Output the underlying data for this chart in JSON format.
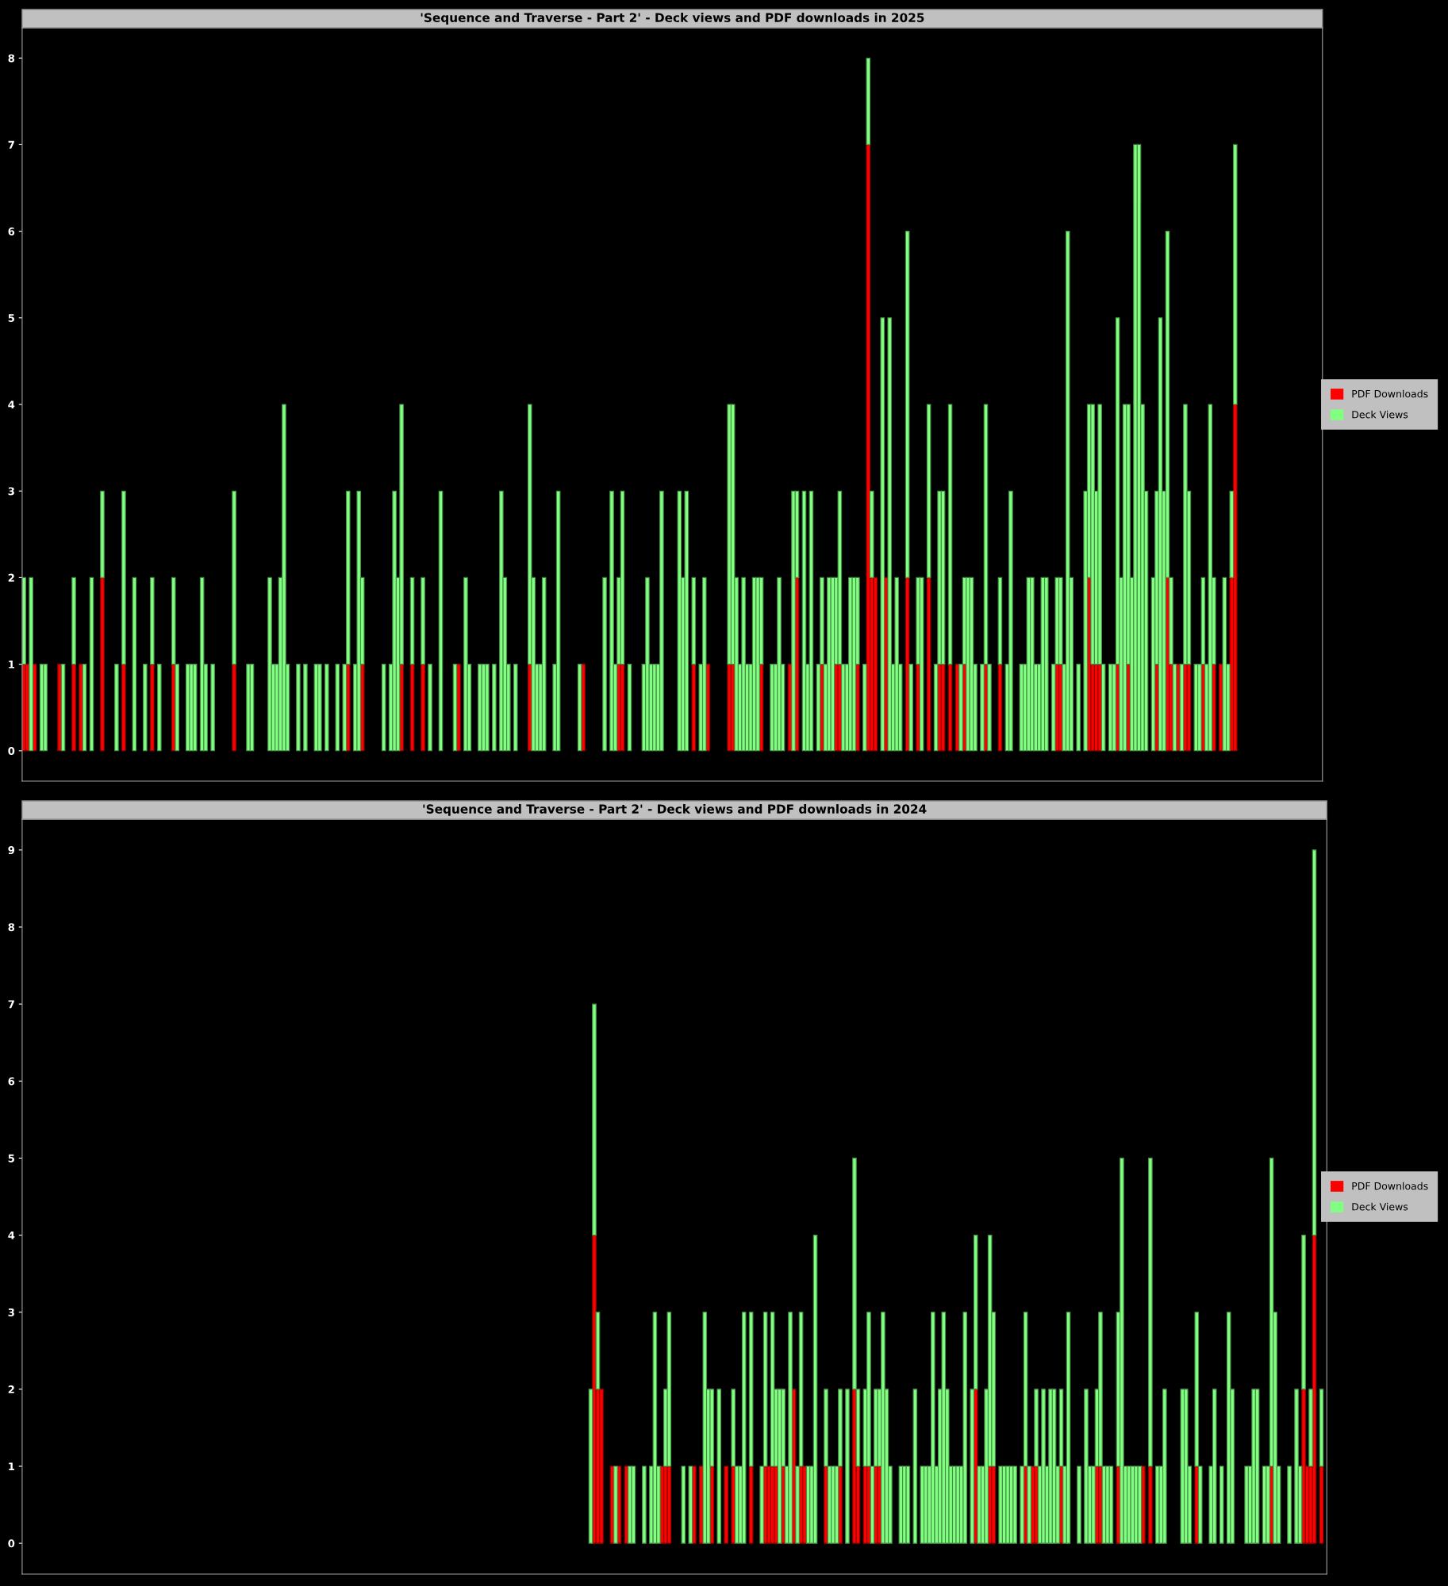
{
  "chart_data": [
    {
      "type": "bar",
      "title": "'Sequence and Traverse - Part 2' - Deck views and PDF downloads in 2025",
      "stacked": true,
      "legend": "right",
      "tick_labels": "y",
      "ylim": [
        -0.35,
        8.35
      ],
      "yticks": [
        0,
        1,
        2,
        3,
        4,
        5,
        6,
        7,
        8
      ],
      "categories": [
        null,
        null,
        null,
        null,
        null,
        null,
        null,
        null,
        null,
        null,
        null,
        null,
        null,
        null,
        null,
        null,
        null,
        null,
        null,
        null,
        null,
        null,
        null,
        null,
        null,
        null,
        null,
        null,
        null,
        null,
        null,
        null,
        null,
        null,
        null,
        null,
        null,
        null,
        null,
        null,
        null,
        null,
        null,
        null,
        null,
        null,
        null,
        null,
        null,
        null,
        null,
        null,
        null,
        null,
        null,
        null,
        null,
        null,
        null,
        null,
        null,
        null,
        null,
        null,
        null,
        null,
        null,
        null,
        null,
        null,
        null,
        null,
        null,
        null,
        null,
        null,
        null,
        null,
        null,
        null,
        null,
        null,
        null,
        null,
        null,
        null,
        null,
        null,
        null,
        null,
        null,
        null,
        null,
        null,
        null,
        null,
        null,
        null,
        null,
        null,
        null,
        null,
        null,
        null,
        null,
        null,
        null,
        null,
        null,
        null,
        null,
        null,
        null,
        null,
        null,
        null,
        null,
        null,
        null,
        null,
        null,
        null,
        null,
        null,
        null,
        null,
        null,
        null,
        null,
        null,
        null,
        null,
        null,
        null,
        null,
        null,
        null,
        null,
        null,
        null,
        null,
        null,
        null,
        null,
        null,
        null,
        null,
        null,
        null,
        null,
        null,
        null,
        null,
        null,
        null,
        null,
        null,
        null,
        null,
        null,
        null,
        null,
        null,
        null,
        null,
        null,
        null,
        null,
        null,
        null,
        null,
        null,
        null,
        null,
        null,
        null,
        null,
        null,
        null,
        null,
        null,
        null,
        null,
        null,
        null,
        null,
        null,
        null,
        null,
        null,
        null,
        null,
        null,
        null,
        null,
        null,
        null,
        null,
        null,
        null,
        null,
        null,
        null,
        null,
        null,
        null,
        null,
        null,
        null,
        null,
        null,
        null,
        null,
        null,
        null,
        null,
        null,
        null,
        null,
        null,
        null,
        null,
        null,
        null,
        null,
        null,
        null,
        null,
        null,
        null,
        null,
        null,
        null,
        null,
        null,
        null,
        null,
        null,
        null,
        null,
        null,
        null,
        null,
        null,
        null,
        null,
        null,
        null,
        null,
        null,
        null,
        null,
        null,
        null,
        null,
        null,
        null,
        null,
        null,
        null,
        null,
        null,
        null,
        null,
        null,
        null,
        null,
        null,
        null,
        null,
        null,
        null,
        null,
        null,
        null,
        null,
        null,
        null,
        null,
        null,
        null,
        null,
        null,
        null,
        null,
        null,
        null,
        null,
        null,
        null,
        null,
        null,
        null,
        null,
        null,
        null,
        null,
        null,
        null,
        null,
        null,
        null,
        null,
        null,
        null,
        null,
        null,
        null,
        null,
        null,
        null,
        null,
        null,
        null,
        null,
        null,
        null,
        null,
        null,
        null,
        null,
        null,
        null,
        null,
        null,
        null,
        null,
        null,
        null,
        null,
        null,
        null,
        null,
        null,
        null,
        null,
        null,
        null,
        null,
        null,
        null,
        null,
        null,
        null,
        null,
        null,
        null,
        null,
        null,
        null,
        null,
        null,
        null,
        null,
        null,
        null,
        null,
        null,
        null,
        null,
        null,
        null,
        null,
        null,
        null
      ],
      "series": [
        {
          "name": "PDF Downloads",
          "color": "#ff0000",
          "values": [
            1,
            1,
            0,
            1,
            0,
            0,
            0,
            0,
            0,
            0,
            1,
            0,
            0,
            0,
            1,
            0,
            1,
            0,
            0,
            0,
            0,
            0,
            2,
            0,
            0,
            0,
            0,
            0,
            1,
            0,
            0,
            0,
            0,
            0,
            0,
            0,
            1,
            0,
            0,
            0,
            0,
            0,
            1,
            0,
            0,
            0,
            0,
            0,
            0,
            0,
            0,
            0,
            0,
            0,
            0,
            0,
            0,
            0,
            0,
            1,
            0,
            0,
            0,
            0,
            0,
            0,
            0,
            0,
            0,
            0,
            0,
            0,
            0,
            0,
            0,
            0,
            0,
            0,
            0,
            0,
            0,
            0,
            0,
            0,
            0,
            0,
            0,
            0,
            0,
            0,
            0,
            1,
            0,
            0,
            0,
            1,
            0,
            0,
            0,
            0,
            0,
            0,
            0,
            0,
            0,
            0,
            1,
            0,
            0,
            1,
            0,
            0,
            1,
            0,
            0,
            0,
            0,
            0,
            0,
            0,
            0,
            0,
            1,
            0,
            0,
            0,
            0,
            0,
            0,
            0,
            0,
            0,
            0,
            0,
            0,
            0,
            0,
            0,
            0,
            0,
            0,
            0,
            1,
            0,
            0,
            0,
            0,
            0,
            0,
            0,
            0,
            0,
            0,
            0,
            0,
            0,
            0,
            1,
            0,
            0,
            0,
            0,
            0,
            0,
            0,
            0,
            0,
            1,
            1,
            0,
            0,
            0,
            0,
            0,
            0,
            0,
            0,
            0,
            0,
            0,
            0,
            0,
            0,
            0,
            0,
            0,
            0,
            0,
            1,
            0,
            0,
            0,
            1,
            0,
            0,
            0,
            0,
            0,
            1,
            1,
            0,
            0,
            0,
            0,
            0,
            0,
            0,
            1,
            0,
            0,
            0,
            0,
            0,
            0,
            0,
            1,
            0,
            2,
            0,
            0,
            0,
            0,
            0,
            0,
            1,
            0,
            0,
            0,
            1,
            1,
            0,
            0,
            0,
            0,
            1,
            0,
            0,
            7,
            2,
            2,
            0,
            0,
            2,
            0,
            0,
            0,
            0,
            0,
            2,
            0,
            0,
            1,
            0,
            0,
            2,
            0,
            0,
            1,
            1,
            0,
            1,
            0,
            1,
            0,
            1,
            0,
            0,
            0,
            0,
            0,
            1,
            0,
            0,
            0,
            1,
            0,
            0,
            0,
            0,
            0,
            0,
            0,
            0,
            0,
            0,
            0,
            0,
            0,
            0,
            0,
            1,
            1,
            0,
            0,
            0,
            0,
            0,
            0,
            0,
            2,
            1,
            1,
            1,
            0,
            0,
            0,
            0,
            1,
            0,
            0,
            1,
            0,
            0,
            0,
            0,
            0,
            0,
            0,
            1,
            0,
            0,
            2,
            1,
            0,
            1,
            0,
            1,
            1,
            0,
            0,
            0,
            1,
            0,
            0,
            1,
            0,
            1,
            0,
            0,
            2,
            4,
            0,
            0,
            0,
            0,
            0,
            0,
            0,
            0,
            0,
            0,
            0,
            0,
            0,
            0,
            0,
            0,
            0,
            0,
            0,
            0,
            0,
            0,
            0,
            0
          ]
        },
        {
          "name": "Deck Views",
          "color": "#80ff80",
          "values": [
            1,
            0,
            2,
            0,
            0,
            1,
            1,
            0,
            0,
            0,
            0,
            1,
            0,
            0,
            1,
            0,
            0,
            1,
            0,
            2,
            0,
            0,
            1,
            0,
            0,
            0,
            1,
            0,
            2,
            0,
            0,
            2,
            0,
            0,
            1,
            0,
            1,
            0,
            1,
            0,
            0,
            0,
            1,
            1,
            0,
            0,
            1,
            1,
            1,
            0,
            2,
            1,
            0,
            1,
            0,
            0,
            0,
            0,
            0,
            2,
            0,
            0,
            0,
            1,
            1,
            0,
            0,
            0,
            0,
            2,
            1,
            1,
            2,
            4,
            1,
            0,
            0,
            1,
            0,
            1,
            0,
            0,
            1,
            1,
            0,
            1,
            0,
            0,
            1,
            0,
            1,
            2,
            0,
            1,
            3,
            1,
            0,
            0,
            0,
            0,
            0,
            1,
            0,
            1,
            3,
            2,
            3,
            0,
            0,
            1,
            0,
            0,
            1,
            0,
            1,
            0,
            0,
            3,
            0,
            0,
            0,
            1,
            0,
            0,
            2,
            1,
            0,
            0,
            1,
            1,
            1,
            0,
            1,
            0,
            3,
            2,
            1,
            0,
            1,
            0,
            0,
            0,
            3,
            2,
            1,
            1,
            2,
            0,
            0,
            1,
            3,
            0,
            0,
            0,
            0,
            0,
            1,
            0,
            0,
            0,
            0,
            0,
            0,
            2,
            0,
            3,
            1,
            1,
            2,
            0,
            1,
            0,
            0,
            0,
            1,
            2,
            1,
            1,
            1,
            3,
            0,
            0,
            0,
            0,
            3,
            2,
            3,
            0,
            1,
            0,
            1,
            2,
            0,
            0,
            0,
            0,
            0,
            0,
            3,
            3,
            2,
            1,
            2,
            1,
            1,
            2,
            2,
            1,
            0,
            0,
            1,
            1,
            2,
            1,
            0,
            0,
            3,
            1,
            0,
            3,
            1,
            3,
            0,
            1,
            1,
            1,
            2,
            2,
            1,
            2,
            1,
            1,
            2,
            2,
            1,
            0,
            1,
            1,
            1,
            0,
            0,
            5,
            0,
            5,
            1,
            2,
            1,
            0,
            4,
            1,
            0,
            1,
            2,
            0,
            2,
            0,
            1,
            2,
            2,
            0,
            3,
            0,
            0,
            1,
            1,
            2,
            2,
            1,
            0,
            1,
            3,
            1,
            0,
            0,
            1,
            0,
            1,
            3,
            0,
            0,
            1,
            1,
            2,
            2,
            1,
            1,
            2,
            2,
            0,
            1,
            1,
            1,
            1,
            6,
            2,
            0,
            1,
            0,
            3,
            2,
            3,
            2,
            3,
            1,
            0,
            1,
            1,
            4,
            2,
            4,
            3,
            2,
            7,
            7,
            4,
            3,
            0,
            2,
            2,
            5,
            3,
            4,
            1,
            1,
            0,
            1,
            3,
            2,
            0,
            1,
            1,
            1,
            1,
            4,
            1,
            0,
            0,
            2,
            1,
            1,
            3,
            0,
            0,
            0,
            0,
            0,
            0,
            0,
            0,
            0,
            0,
            0,
            0,
            0,
            0,
            0,
            0,
            0,
            0,
            0,
            0,
            0,
            0,
            0,
            0
          ]
        }
      ]
    },
    {
      "type": "bar",
      "title": "'Sequence and Traverse - Part 2' - Deck views and PDF downloads in 2024",
      "stacked": true,
      "legend": "right",
      "tick_labels": "y",
      "ylim": [
        -0.4,
        9.4
      ],
      "yticks": [
        0,
        1,
        2,
        3,
        4,
        5,
        6,
        7,
        8,
        9
      ],
      "categories": [
        null,
        null,
        null,
        null,
        null,
        null,
        null,
        null,
        null,
        null,
        null,
        null,
        null,
        null,
        null,
        null,
        null,
        null,
        null,
        null,
        null,
        null,
        null,
        null,
        null,
        null,
        null,
        null,
        null,
        null,
        null,
        null,
        null,
        null,
        null,
        null,
        null,
        null,
        null,
        null,
        null,
        null,
        null,
        null,
        null,
        null,
        null,
        null,
        null,
        null,
        null,
        null,
        null,
        null,
        null,
        null,
        null,
        null,
        null,
        null,
        null,
        null,
        null,
        null,
        null,
        null,
        null,
        null,
        null,
        null,
        null,
        null,
        null,
        null,
        null,
        null,
        null,
        null,
        null,
        null,
        null,
        null,
        null,
        null,
        null,
        null,
        null,
        null,
        null,
        null,
        null,
        null,
        null,
        null,
        null,
        null,
        null,
        null,
        null,
        null,
        null,
        null,
        null,
        null,
        null,
        null,
        null,
        null,
        null,
        null,
        null,
        null,
        null,
        null,
        null,
        null,
        null,
        null,
        null,
        null,
        null,
        null,
        null,
        null,
        null,
        null,
        null,
        null,
        null,
        null,
        null,
        null,
        null,
        null,
        null,
        null,
        null,
        null,
        null,
        null,
        null,
        null,
        null,
        null,
        null,
        null,
        null,
        null,
        null,
        null,
        null,
        null,
        null,
        null,
        null,
        null,
        null,
        null,
        null,
        null,
        null,
        null,
        null,
        null,
        null,
        null,
        null,
        null,
        null,
        null,
        null,
        null,
        null,
        null,
        null,
        null,
        null,
        null,
        null,
        null,
        null,
        null,
        null,
        null,
        null,
        null,
        null,
        null,
        null,
        null,
        null,
        null,
        null,
        null,
        null,
        null,
        null,
        null,
        null,
        null,
        null,
        null,
        null,
        null,
        null,
        null,
        null,
        null,
        null,
        null,
        null,
        null,
        null,
        null,
        null,
        null,
        null,
        null,
        null,
        null,
        null,
        null,
        null,
        null,
        null,
        null,
        null,
        null,
        null,
        null,
        null,
        null,
        null,
        null,
        null,
        null,
        null,
        null,
        null,
        null,
        null,
        null,
        null,
        null,
        null,
        null,
        null,
        null,
        null,
        null,
        null,
        null,
        null,
        null,
        null,
        null,
        null,
        null,
        null,
        null,
        null,
        null,
        null,
        null,
        null,
        null,
        null,
        null,
        null,
        null,
        null,
        null,
        null,
        null,
        null,
        null,
        null,
        null,
        null,
        null,
        null,
        null,
        null,
        null,
        null,
        null,
        null,
        null,
        null,
        null,
        null,
        null,
        null,
        null,
        null,
        null,
        null,
        null,
        null,
        null,
        null,
        null,
        null,
        null,
        null,
        null,
        null,
        null,
        null,
        null,
        null,
        null,
        null,
        null,
        null,
        null,
        null,
        null,
        null,
        null,
        null,
        null,
        null,
        null,
        null,
        null,
        null,
        null,
        null,
        null,
        null,
        null,
        null,
        null,
        null,
        null,
        null,
        null,
        null,
        null,
        null,
        null,
        null,
        null,
        null,
        null,
        null,
        null,
        null,
        null,
        null,
        null,
        null,
        null,
        null,
        null,
        null,
        null,
        null,
        null,
        null,
        null,
        null,
        null,
        null,
        null
      ],
      "series": [
        {
          "name": "PDF Downloads",
          "color": "#ff0000",
          "values": [
            0,
            0,
            0,
            0,
            0,
            0,
            0,
            0,
            0,
            0,
            0,
            0,
            0,
            0,
            0,
            0,
            0,
            0,
            0,
            0,
            0,
            0,
            0,
            0,
            0,
            0,
            0,
            0,
            0,
            0,
            0,
            0,
            0,
            0,
            0,
            0,
            0,
            0,
            0,
            0,
            0,
            0,
            0,
            0,
            0,
            0,
            0,
            0,
            0,
            0,
            0,
            0,
            0,
            0,
            0,
            0,
            0,
            0,
            0,
            0,
            0,
            0,
            0,
            0,
            0,
            0,
            0,
            0,
            0,
            0,
            0,
            0,
            0,
            0,
            0,
            0,
            0,
            0,
            0,
            0,
            0,
            0,
            0,
            0,
            0,
            0,
            0,
            0,
            0,
            0,
            0,
            0,
            0,
            0,
            0,
            0,
            0,
            0,
            0,
            0,
            0,
            0,
            0,
            0,
            0,
            0,
            0,
            0,
            0,
            0,
            0,
            0,
            0,
            0,
            0,
            0,
            0,
            0,
            0,
            0,
            0,
            0,
            0,
            0,
            0,
            0,
            0,
            0,
            0,
            0,
            0,
            0,
            0,
            0,
            0,
            0,
            0,
            0,
            0,
            0,
            0,
            0,
            0,
            0,
            0,
            0,
            0,
            0,
            0,
            0,
            0,
            0,
            0,
            0,
            0,
            0,
            0,
            0,
            0,
            0,
            4,
            2,
            2,
            0,
            0,
            1,
            0,
            1,
            0,
            1,
            0,
            0,
            0,
            0,
            0,
            0,
            0,
            0,
            0,
            1,
            1,
            1,
            0,
            0,
            0,
            0,
            0,
            0,
            1,
            0,
            1,
            0,
            0,
            1,
            0,
            0,
            0,
            1,
            0,
            1,
            0,
            0,
            0,
            0,
            1,
            0,
            0,
            0,
            1,
            1,
            1,
            1,
            0,
            1,
            0,
            0,
            2,
            0,
            1,
            1,
            0,
            0,
            0,
            0,
            0,
            1,
            0,
            0,
            0,
            1,
            0,
            0,
            0,
            2,
            1,
            0,
            1,
            1,
            0,
            1,
            1,
            0,
            0,
            0,
            0,
            0,
            0,
            0,
            0,
            0,
            0,
            0,
            0,
            0,
            0,
            0,
            0,
            0,
            0,
            0,
            0,
            0,
            0,
            0,
            0,
            0,
            0,
            2,
            0,
            0,
            0,
            1,
            1,
            0,
            0,
            0,
            0,
            0,
            0,
            0,
            0,
            1,
            0,
            1,
            1,
            0,
            0,
            0,
            0,
            0,
            0,
            1,
            0,
            0,
            0,
            0,
            0,
            0,
            0,
            0,
            0,
            1,
            1,
            0,
            0,
            0,
            0,
            1,
            0,
            0,
            0,
            0,
            0,
            0,
            1,
            0,
            1,
            0,
            0,
            0,
            0,
            0,
            0,
            0,
            0,
            0,
            0,
            0,
            0,
            1,
            0,
            0,
            0,
            0,
            0,
            0,
            0,
            0,
            0,
            0,
            0,
            0,
            0,
            0,
            0,
            0,
            0,
            0,
            0,
            0,
            1,
            0,
            0,
            0,
            0,
            0,
            0,
            0,
            0,
            2,
            1,
            1,
            4,
            0,
            1,
            0
          ]
        },
        {
          "name": "Deck Views",
          "color": "#80ff80",
          "values": [
            0,
            0,
            0,
            0,
            0,
            0,
            0,
            0,
            0,
            0,
            0,
            0,
            0,
            0,
            0,
            0,
            0,
            0,
            0,
            0,
            0,
            0,
            0,
            0,
            0,
            0,
            0,
            0,
            0,
            0,
            0,
            0,
            0,
            0,
            0,
            0,
            0,
            0,
            0,
            0,
            0,
            0,
            0,
            0,
            0,
            0,
            0,
            0,
            0,
            0,
            0,
            0,
            0,
            0,
            0,
            0,
            0,
            0,
            0,
            0,
            0,
            0,
            0,
            0,
            0,
            0,
            0,
            0,
            0,
            0,
            0,
            0,
            0,
            0,
            0,
            0,
            0,
            0,
            0,
            0,
            0,
            0,
            0,
            0,
            0,
            0,
            0,
            0,
            0,
            0,
            0,
            0,
            0,
            0,
            0,
            0,
            0,
            0,
            0,
            0,
            0,
            0,
            0,
            0,
            0,
            0,
            0,
            0,
            0,
            0,
            0,
            0,
            0,
            0,
            0,
            0,
            0,
            0,
            0,
            0,
            0,
            0,
            0,
            0,
            0,
            0,
            0,
            0,
            0,
            0,
            0,
            0,
            0,
            0,
            0,
            0,
            0,
            0,
            0,
            0,
            0,
            0,
            0,
            0,
            0,
            0,
            0,
            0,
            0,
            0,
            0,
            0,
            0,
            0,
            0,
            0,
            0,
            0,
            0,
            2,
            3,
            1,
            0,
            0,
            0,
            0,
            1,
            0,
            0,
            0,
            1,
            1,
            0,
            0,
            1,
            0,
            1,
            3,
            1,
            0,
            1,
            2,
            0,
            0,
            0,
            1,
            0,
            1,
            0,
            0,
            0,
            3,
            2,
            1,
            0,
            2,
            0,
            0,
            0,
            1,
            1,
            1,
            3,
            0,
            2,
            0,
            0,
            1,
            2,
            0,
            2,
            1,
            2,
            1,
            1,
            3,
            0,
            1,
            2,
            0,
            1,
            1,
            4,
            0,
            0,
            1,
            1,
            1,
            1,
            1,
            0,
            2,
            0,
            3,
            1,
            0,
            1,
            2,
            1,
            1,
            1,
            3,
            2,
            1,
            0,
            0,
            1,
            1,
            1,
            0,
            2,
            0,
            1,
            1,
            1,
            3,
            1,
            2,
            3,
            2,
            1,
            1,
            1,
            1,
            3,
            0,
            2,
            2,
            1,
            1,
            2,
            3,
            2,
            0,
            1,
            1,
            1,
            1,
            1,
            0,
            1,
            2,
            1,
            0,
            1,
            1,
            2,
            1,
            2,
            2,
            1,
            1,
            1,
            3,
            0,
            0,
            1,
            0,
            2,
            1,
            1,
            1,
            2,
            1,
            1,
            1,
            0,
            2,
            5,
            1,
            1,
            1,
            1,
            1,
            0,
            0,
            4,
            0,
            1,
            1,
            2,
            0,
            0,
            0,
            0,
            2,
            2,
            1,
            0,
            2,
            1,
            0,
            0,
            1,
            2,
            0,
            1,
            0,
            3,
            2,
            0,
            0,
            0,
            1,
            1,
            2,
            2,
            0,
            1,
            1,
            4,
            3,
            1,
            0,
            0,
            1,
            0,
            2,
            1,
            2,
            0,
            1,
            5,
            0,
            1,
            0
          ]
        }
      ]
    }
  ]
}
